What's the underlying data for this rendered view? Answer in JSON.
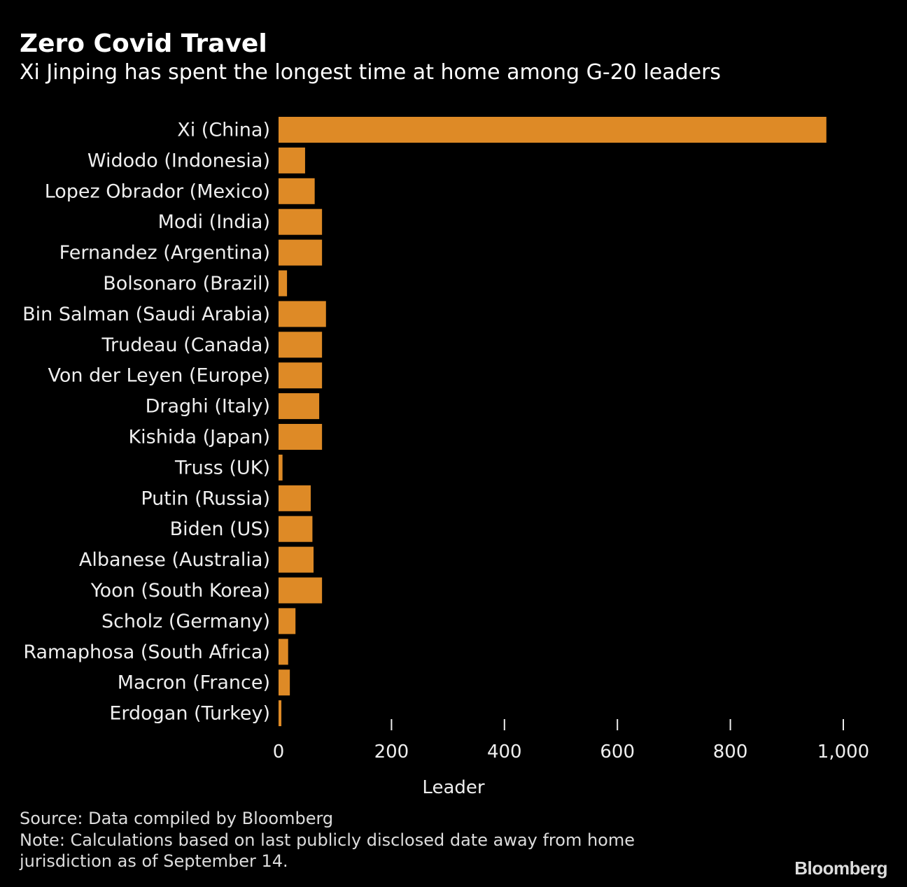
{
  "header": {
    "title": "Zero Covid Travel",
    "subtitle": "Xi Jinping has spent the longest time at home among G-20 leaders"
  },
  "chart_data": {
    "type": "bar",
    "orientation": "horizontal",
    "categories": [
      "Xi (China)",
      "Widodo (Indonesia)",
      "Lopez Obrador (Mexico)",
      "Modi (India)",
      "Fernandez (Argentina)",
      "Bolsonaro (Brazil)",
      "Bin Salman (Saudi Arabia)",
      "Trudeau (Canada)",
      "Von der Leyen (Europe)",
      "Draghi (Italy)",
      "Kishida (Japan)",
      "Truss (UK)",
      "Putin (Russia)",
      "Biden (US)",
      "Albanese (Australia)",
      "Yoon (South Korea)",
      "Scholz (Germany)",
      "Ramaphosa (South Africa)",
      "Macron (France)",
      "Erdogan (Turkey)"
    ],
    "values": [
      970,
      47,
      64,
      77,
      77,
      15,
      84,
      77,
      77,
      72,
      77,
      7,
      57,
      60,
      62,
      77,
      30,
      17,
      20,
      5
    ],
    "xlim": [
      0,
      1000
    ],
    "xticks": [
      0,
      200,
      400,
      600,
      800,
      1000
    ],
    "xtick_labels": [
      "0",
      "200",
      "400",
      "600",
      "800",
      "1,000"
    ],
    "xlabel": "Leader",
    "bar_color": "#DE8A26",
    "grid": false
  },
  "footer": {
    "source": "Source: Data compiled by Bloomberg",
    "note": "Note: Calculations based on last publicly disclosed date away from home jurisdiction as of September 14.",
    "logo": "Bloomberg"
  }
}
